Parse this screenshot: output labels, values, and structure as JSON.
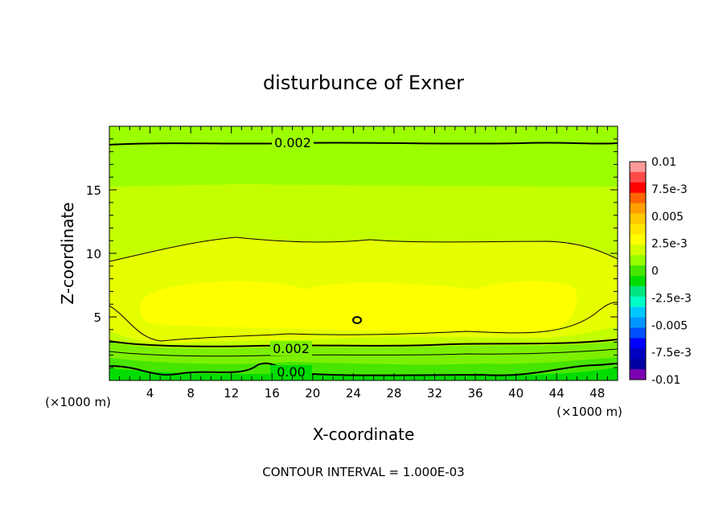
{
  "chart_data": {
    "type": "heatmap",
    "title": "disturbunce of Exner",
    "xlabel": "X-coordinate",
    "ylabel": "Z-coordinate",
    "x_unit_left": "(×1000 m)",
    "x_unit_right": "(×1000 m)",
    "xlim": [
      0,
      50
    ],
    "ylim": [
      0,
      20
    ],
    "x_ticks": [
      4,
      8,
      12,
      16,
      20,
      24,
      28,
      32,
      36,
      40,
      44,
      48
    ],
    "y_ticks": [
      5,
      10,
      15
    ],
    "colorbar": {
      "labels": [
        "0.01",
        "7.5e-3",
        "0.005",
        "2.5e-3",
        "0",
        "-2.5e-3",
        "-0.005",
        "-7.5e-3",
        "-0.01"
      ],
      "colors": [
        "#ff9a9a",
        "#ff4a4a",
        "#ff0000",
        "#ff6400",
        "#ffa000",
        "#ffc800",
        "#ffe600",
        "#ffff00",
        "#d2ff00",
        "#96ff00",
        "#46e600",
        "#00dc00",
        "#00e680",
        "#00ffc8",
        "#00c8ff",
        "#0096ff",
        "#0050ff",
        "#0000ff",
        "#0000c0",
        "#0000a0",
        "#7d00b4"
      ],
      "range": [
        -0.01,
        0.01
      ]
    },
    "contour_levels": [
      {
        "value": 0.002,
        "label": "0.002"
      },
      {
        "value": 0.002,
        "label": "0.002"
      },
      {
        "value": 0.0,
        "label": "0.00"
      }
    ],
    "footnote": "CONTOUR INTERVAL = 1.000E-03"
  }
}
